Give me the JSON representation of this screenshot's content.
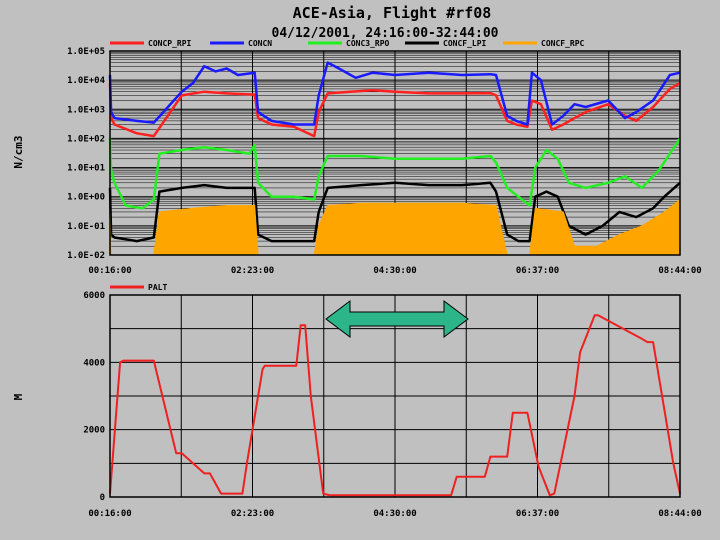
{
  "header": {
    "title": "ACE-Asia, Flight #rf08",
    "subtitle": "04/12/2001, 24:16:00-32:44:00"
  },
  "colors": {
    "background": "#c0c0c0",
    "plot_background": "#c0c0c0",
    "grid": "#000000",
    "arrow_fill": "#2db58a",
    "arrow_stroke": "#000000"
  },
  "chart_data": [
    {
      "type": "line",
      "ylabel": "N/cm3",
      "y_scale": "log",
      "ylim": [
        0.01,
        100000
      ],
      "yticks": [
        0.01,
        0.1,
        1,
        10,
        100,
        1000,
        10000,
        100000
      ],
      "ytick_labels": [
        "1.0E-02",
        "1.0E-01",
        "1.0E+00",
        "1.0E+01",
        "1.0E+02",
        "1.0E+03",
        "1.0E+04",
        "1.0E+05"
      ],
      "xlim": [
        "00:16:00",
        "08:44:00"
      ],
      "xticks": [
        "00:16:00",
        "02:23:00",
        "04:30:00",
        "06:37:00",
        "08:44:00"
      ],
      "grid": true,
      "legend_position": "top",
      "series": [
        {
          "name": "CONCP_RPI",
          "color": "#ff2020",
          "style": "line",
          "x": [
            "00:16:00",
            "00:17:00",
            "00:20:00",
            "00:40:00",
            "00:55:00",
            "01:20:00",
            "01:40:00",
            "02:00:00",
            "02:25:00",
            "02:28:00",
            "02:40:00",
            "03:00:00",
            "03:18:00",
            "03:22:00",
            "03:30:00",
            "03:50:00",
            "04:10:00",
            "04:30:00",
            "05:00:00",
            "05:30:00",
            "05:55:00",
            "06:00:00",
            "06:10:00",
            "06:18:00",
            "06:28:00",
            "06:32:00",
            "06:40:00",
            "06:50:00",
            "07:00:00",
            "07:10:00",
            "07:20:00",
            "07:40:00",
            "07:55:00",
            "08:05:00",
            "08:20:00",
            "08:35:00",
            "08:44:00"
          ],
          "y": [
            8000,
            500,
            300,
            150,
            120,
            3000,
            4000,
            3500,
            3200,
            500,
            300,
            250,
            120,
            800,
            3500,
            4000,
            4500,
            4000,
            3500,
            3500,
            3600,
            3000,
            400,
            300,
            250,
            2000,
            1500,
            200,
            300,
            500,
            800,
            1500,
            600,
            400,
            1200,
            5000,
            8000
          ]
        },
        {
          "name": "CONCN",
          "color": "#1a1aff",
          "style": "line",
          "x": [
            "00:16:00",
            "00:17:00",
            "00:20:00",
            "00:40:00",
            "00:55:00",
            "01:20:00",
            "01:30:00",
            "01:40:00",
            "01:50:00",
            "02:00:00",
            "02:10:00",
            "02:25:00",
            "02:28:00",
            "02:40:00",
            "03:00:00",
            "03:18:00",
            "03:22:00",
            "03:30:00",
            "03:40:00",
            "03:55:00",
            "04:10:00",
            "04:30:00",
            "05:00:00",
            "05:30:00",
            "05:55:00",
            "06:00:00",
            "06:10:00",
            "06:18:00",
            "06:28:00",
            "06:32:00",
            "06:40:00",
            "06:50:00",
            "07:00:00",
            "07:10:00",
            "07:20:00",
            "07:40:00",
            "07:55:00",
            "08:05:00",
            "08:20:00",
            "08:35:00",
            "08:44:00"
          ],
          "y": [
            15000,
            800,
            500,
            400,
            350,
            4000,
            8000,
            30000,
            20000,
            25000,
            15000,
            18000,
            800,
            400,
            300,
            300,
            3000,
            40000,
            25000,
            12000,
            18000,
            15000,
            18000,
            15000,
            16000,
            15000,
            600,
            400,
            300,
            18000,
            10000,
            300,
            600,
            1500,
            1200,
            2000,
            500,
            800,
            2000,
            15000,
            18000
          ]
        },
        {
          "name": "CONC3_RPO",
          "color": "#22ee22",
          "style": "line",
          "x": [
            "00:16:00",
            "00:17:00",
            "00:20:00",
            "00:30:00",
            "00:45:00",
            "00:55:00",
            "01:00:00",
            "01:20:00",
            "01:40:00",
            "02:00:00",
            "02:20:00",
            "02:25:00",
            "02:28:00",
            "02:40:00",
            "03:00:00",
            "03:18:00",
            "03:22:00",
            "03:30:00",
            "04:00:00",
            "04:30:00",
            "05:00:00",
            "05:30:00",
            "05:55:00",
            "06:00:00",
            "06:10:00",
            "06:20:00",
            "06:30:00",
            "06:35:00",
            "06:45:00",
            "06:55:00",
            "07:05:00",
            "07:20:00",
            "07:40:00",
            "07:55:00",
            "08:10:00",
            "08:25:00",
            "08:35:00",
            "08:44:00"
          ],
          "y": [
            100,
            8,
            3,
            0.5,
            0.4,
            0.8,
            30,
            40,
            50,
            40,
            30,
            60,
            3,
            1,
            1,
            0.8,
            5,
            25,
            25,
            20,
            20,
            20,
            25,
            15,
            2,
            1,
            0.5,
            10,
            40,
            20,
            3,
            2,
            3,
            5,
            2,
            8,
            30,
            100
          ]
        },
        {
          "name": "CONCF_LPI",
          "color": "#000000",
          "style": "line",
          "x": [
            "00:16:00",
            "00:17:00",
            "00:20:00",
            "00:40:00",
            "00:55:00",
            "01:00:00",
            "01:20:00",
            "01:40:00",
            "02:00:00",
            "02:25:00",
            "02:28:00",
            "02:40:00",
            "03:00:00",
            "03:18:00",
            "03:22:00",
            "03:30:00",
            "04:00:00",
            "04:30:00",
            "05:00:00",
            "05:30:00",
            "05:55:00",
            "06:00:00",
            "06:10:00",
            "06:20:00",
            "06:30:00",
            "06:35:00",
            "06:45:00",
            "06:55:00",
            "07:05:00",
            "07:20:00",
            "07:35:00",
            "07:50:00",
            "08:05:00",
            "08:20:00",
            "08:30:00",
            "08:44:00"
          ],
          "y": [
            2,
            0.05,
            0.04,
            0.03,
            0.04,
            1.5,
            2,
            2.5,
            2,
            2,
            0.05,
            0.03,
            0.03,
            0.03,
            0.3,
            2,
            2.5,
            3,
            2.5,
            2.5,
            3,
            1.5,
            0.05,
            0.03,
            0.03,
            1,
            1.5,
            1,
            0.1,
            0.05,
            0.1,
            0.3,
            0.2,
            0.4,
            1,
            3
          ]
        },
        {
          "name": "CONCF_RPC",
          "color": "#ffa500",
          "style": "area",
          "x": [
            "00:16:00",
            "00:17:00",
            "00:20:00",
            "00:55:00",
            "01:00:00",
            "01:30:00",
            "02:00:00",
            "02:25:00",
            "02:28:00",
            "03:18:00",
            "03:22:00",
            "03:30:00",
            "04:00:00",
            "04:30:00",
            "05:00:00",
            "05:30:00",
            "06:00:00",
            "06:10:00",
            "06:30:00",
            "06:35:00",
            "07:00:00",
            "07:10:00",
            "07:30:00",
            "07:50:00",
            "08:10:00",
            "08:30:00",
            "08:44:00"
          ],
          "y": [
            0.5,
            0.01,
            0.01,
            0.01,
            0.3,
            0.4,
            0.5,
            0.5,
            0.01,
            0.01,
            0.1,
            0.5,
            0.6,
            0.6,
            0.6,
            0.6,
            0.5,
            0.01,
            0.01,
            0.4,
            0.3,
            0.02,
            0.02,
            0.05,
            0.1,
            0.3,
            0.8
          ]
        }
      ]
    },
    {
      "type": "line",
      "ylabel": "M",
      "y_scale": "linear",
      "ylim": [
        0,
        6000
      ],
      "yticks": [
        0,
        2000,
        4000,
        6000
      ],
      "ytick_labels": [
        "0",
        "2000",
        "4000",
        "6000"
      ],
      "xlim": [
        "00:16:00",
        "08:44:00"
      ],
      "xticks": [
        "00:16:00",
        "02:23:00",
        "04:30:00",
        "06:37:00",
        "08:44:00"
      ],
      "grid": true,
      "legend_position": "top-left",
      "series": [
        {
          "name": "PALT",
          "color": "#ee2020",
          "x": [
            "00:16:00",
            "00:25:00",
            "00:28:00",
            "00:55:00",
            "01:15:00",
            "01:20:00",
            "01:40:00",
            "01:45:00",
            "01:55:00",
            "02:14:00",
            "02:18:00",
            "02:32:00",
            "02:34:00",
            "03:02:00",
            "03:06:00",
            "03:10:00",
            "03:15:00",
            "03:26:00",
            "03:32:00",
            "04:30:00",
            "05:20:00",
            "05:25:00",
            "05:50:00",
            "05:55:00",
            "06:10:00",
            "06:15:00",
            "06:28:00",
            "06:38:00",
            "06:48:00",
            "06:52:00",
            "07:10:00",
            "07:15:00",
            "07:28:00",
            "07:31:00",
            "08:10:00",
            "08:15:00",
            "08:20:00",
            "08:38:00",
            "08:44:00"
          ],
          "y": [
            100,
            4000,
            4050,
            4050,
            1300,
            1300,
            700,
            700,
            100,
            100,
            1000,
            3800,
            3900,
            3900,
            5100,
            5100,
            3000,
            100,
            50,
            50,
            50,
            600,
            600,
            1200,
            1200,
            2500,
            2500,
            900,
            50,
            100,
            3000,
            4300,
            5400,
            5400,
            4700,
            4600,
            4600,
            1000,
            100
          ]
        }
      ]
    }
  ]
}
